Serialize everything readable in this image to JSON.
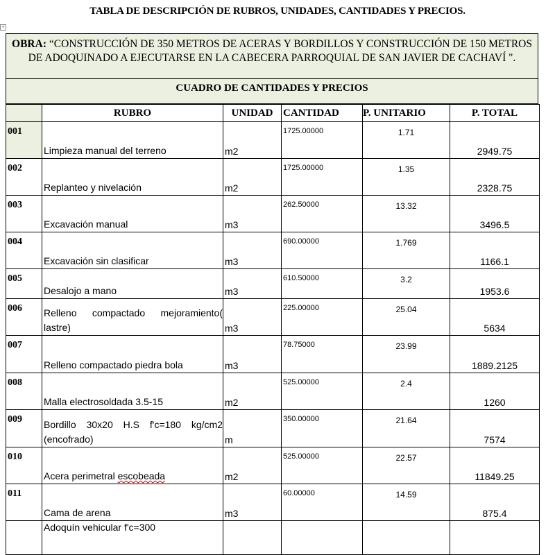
{
  "document": {
    "title": "TABLA DE DESCRIPCIÓN DE RUBROS, UNIDADES, CANTIDADES Y PRECIOS.",
    "obra_label": "OBRA:",
    "obra_text": " “CONSTRUCCIÓN DE 350 METROS DE ACERAS Y BORDILLOS Y CONSTRUCCIÓN DE 150 METROS DE ADOQUINADO A EJECUTARSE EN LA CABECERA PARROQUIAL DE SAN JAVIER DE CACHAVÍ \".",
    "table_heading": "CUADRO DE CANTIDADES Y PRECIOS",
    "header_color": "#ebf0e0"
  },
  "table": {
    "columns": [
      "",
      "RUBRO",
      "UNIDAD",
      "CANTIDAD",
      "P. UNITARIO",
      "P. TOTAL"
    ],
    "rows": [
      {
        "code": "001",
        "rubro": "Limpieza manual del terreno",
        "unidad": "m2",
        "cantidad": "1725.00000",
        "p_unitario": "1.71",
        "p_total": "2949.75"
      },
      {
        "code": "002",
        "rubro": "Replanteo y nivelación",
        "unidad": "m2",
        "cantidad": "1725.00000",
        "p_unitario": "1.35",
        "p_total": "2328.75"
      },
      {
        "code": "003",
        "rubro": "Excavación manual",
        "unidad": "m3",
        "cantidad": "262.50000",
        "p_unitario": "13.32",
        "p_total": "3496.5"
      },
      {
        "code": "004",
        "rubro": "Excavación sin clasificar",
        "unidad": "m3",
        "cantidad": "690.00000",
        "p_unitario": "1.769",
        "p_total": "1166.1"
      },
      {
        "code": "005",
        "rubro": "Desalojo a mano",
        "unidad": "m3",
        "cantidad": "610.50000",
        "p_unitario": "3.2",
        "p_total": "1953.6"
      },
      {
        "code": "006",
        "rubro": "Relleno compactado mejoramiento( lastre)",
        "unidad": "m3",
        "cantidad": "225.00000",
        "p_unitario": "25.04",
        "p_total": "5634"
      },
      {
        "code": "007",
        "rubro": "Relleno compactado piedra bola",
        "unidad": "m3",
        "cantidad": "78.75000",
        "p_unitario": "23.99",
        "p_total": "1889.2125"
      },
      {
        "code": "008",
        "rubro": "Malla electrosoldada 3.5-15",
        "unidad": "m2",
        "cantidad": "525.00000",
        "p_unitario": "2.4",
        "p_total": "1260"
      },
      {
        "code": "009",
        "rubro": "Bordillo 30x20 H.S f'c=180 kg/cm2 (encofrado)",
        "unidad": "m",
        "cantidad": "350.00000",
        "p_unitario": "21.64",
        "p_total": "7574"
      },
      {
        "code": "010",
        "rubro": "Acera perimetral escobeada",
        "unidad": "m2",
        "cantidad": "525.00000",
        "p_unitario": "22.57",
        "p_total": "11849.25"
      },
      {
        "code": "011",
        "rubro": "Cama de arena",
        "unidad": "m3",
        "cantidad": "60.00000",
        "p_unitario": "14.59",
        "p_total": "875.4"
      },
      {
        "code": "",
        "rubro": "Adoquín vehicular f'c=300",
        "unidad": "",
        "cantidad": "",
        "p_unitario": "",
        "p_total": ""
      }
    ]
  }
}
